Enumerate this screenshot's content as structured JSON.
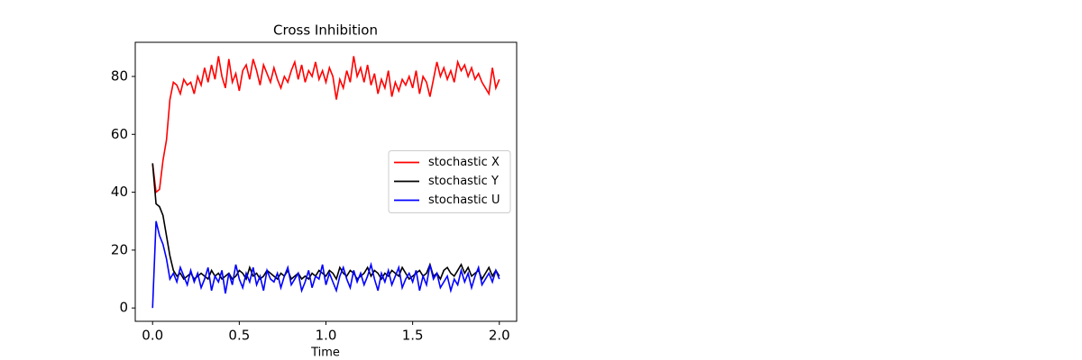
{
  "chart_data": {
    "type": "line",
    "title": "Cross Inhibition",
    "x_label": "Time",
    "x": [
      0,
      0.02,
      0.04,
      0.06,
      0.08,
      0.1,
      0.12,
      0.14,
      0.16,
      0.18,
      0.2,
      0.22,
      0.24,
      0.26,
      0.28,
      0.3,
      0.32,
      0.34,
      0.36,
      0.38,
      0.4,
      0.42,
      0.44,
      0.46,
      0.48,
      0.5,
      0.52,
      0.54,
      0.56,
      0.58,
      0.6,
      0.62,
      0.64,
      0.66,
      0.68,
      0.7,
      0.72,
      0.74,
      0.76,
      0.78,
      0.8,
      0.82,
      0.84,
      0.86,
      0.88,
      0.9,
      0.92,
      0.94,
      0.96,
      0.98,
      1,
      1.02,
      1.04,
      1.06,
      1.08,
      1.1,
      1.12,
      1.14,
      1.16,
      1.18,
      1.2,
      1.22,
      1.24,
      1.26,
      1.28,
      1.3,
      1.32,
      1.34,
      1.36,
      1.38,
      1.4,
      1.42,
      1.44,
      1.46,
      1.48,
      1.5,
      1.52,
      1.54,
      1.56,
      1.58,
      1.6,
      1.62,
      1.64,
      1.66,
      1.68,
      1.7,
      1.72,
      1.74,
      1.76,
      1.78,
      1.8,
      1.82,
      1.84,
      1.86,
      1.88,
      1.9,
      1.92,
      1.94,
      1.96,
      1.98,
      2
    ],
    "series": [
      {
        "name": "stochastic X",
        "color": "#ff0000",
        "values": [
          50,
          40,
          41,
          51,
          58,
          72,
          78,
          77,
          74,
          79,
          77,
          78,
          74,
          80,
          77,
          83,
          78,
          84,
          79,
          87,
          80,
          76,
          86,
          78,
          81,
          75,
          82,
          84,
          79,
          86,
          82,
          77,
          84,
          81,
          78,
          83,
          79,
          76,
          80,
          78,
          82,
          85,
          79,
          84,
          78,
          82,
          80,
          85,
          79,
          82,
          78,
          83,
          80,
          72,
          79,
          76,
          82,
          78,
          87,
          80,
          83,
          78,
          84,
          77,
          81,
          74,
          79,
          76,
          82,
          73,
          78,
          75,
          79,
          77,
          80,
          76,
          82,
          74,
          80,
          78,
          73,
          79,
          85,
          80,
          83,
          79,
          82,
          78,
          85,
          82,
          84,
          80,
          83,
          79,
          81,
          78,
          76,
          74,
          83,
          76,
          79
        ]
      },
      {
        "name": "stochastic Y",
        "color": "#000000",
        "values": [
          50,
          36,
          35,
          32,
          25,
          18,
          13,
          11,
          12,
          10,
          11,
          12,
          10,
          11,
          12,
          11,
          10,
          13,
          11,
          12,
          10,
          11,
          12,
          10,
          11,
          13,
          12,
          10,
          14,
          11,
          12,
          10,
          11,
          13,
          12,
          11,
          10,
          12,
          11,
          13,
          10,
          11,
          12,
          10,
          11,
          10,
          12,
          11,
          13,
          12,
          11,
          13,
          12,
          10,
          14,
          12,
          11,
          13,
          12,
          10,
          11,
          12,
          14,
          11,
          13,
          12,
          10,
          12,
          11,
          13,
          12,
          11,
          14,
          12,
          10,
          11,
          12,
          13,
          11,
          12,
          15,
          11,
          12,
          10,
          13,
          14,
          12,
          11,
          13,
          15,
          12,
          14,
          11,
          12,
          13,
          10,
          12,
          14,
          11,
          13,
          11
        ]
      },
      {
        "name": "stochastic U",
        "color": "#0000ff",
        "values": [
          0,
          30,
          25,
          22,
          17,
          10,
          12,
          9,
          14,
          11,
          8,
          13,
          9,
          12,
          7,
          10,
          14,
          6,
          11,
          9,
          13,
          5,
          12,
          8,
          15,
          10,
          7,
          12,
          9,
          14,
          8,
          11,
          6,
          13,
          10,
          9,
          12,
          7,
          11,
          14,
          8,
          10,
          12,
          6,
          9,
          13,
          7,
          11,
          10,
          15,
          8,
          12,
          9,
          6,
          11,
          14,
          10,
          7,
          13,
          9,
          12,
          8,
          11,
          15,
          10,
          6,
          12,
          9,
          13,
          8,
          11,
          14,
          7,
          10,
          12,
          9,
          13,
          6,
          11,
          8,
          15,
          10,
          12,
          7,
          9,
          11,
          6,
          10,
          8,
          13,
          9,
          12,
          7,
          11,
          14,
          8,
          10,
          12,
          9,
          13,
          10
        ]
      }
    ],
    "xlim": [
      -0.1,
      2.1
    ],
    "xticks": [
      {
        "value": 0,
        "label": "0.0"
      },
      0.5,
      {
        "value": 1,
        "label": "1.0"
      },
      1.5,
      {
        "value": 2,
        "label": "2.0"
      }
    ],
    "ylim": [
      -4.6,
      91.8
    ],
    "yticks": [
      0,
      20,
      40,
      60,
      80
    ],
    "legend": "center right"
  }
}
